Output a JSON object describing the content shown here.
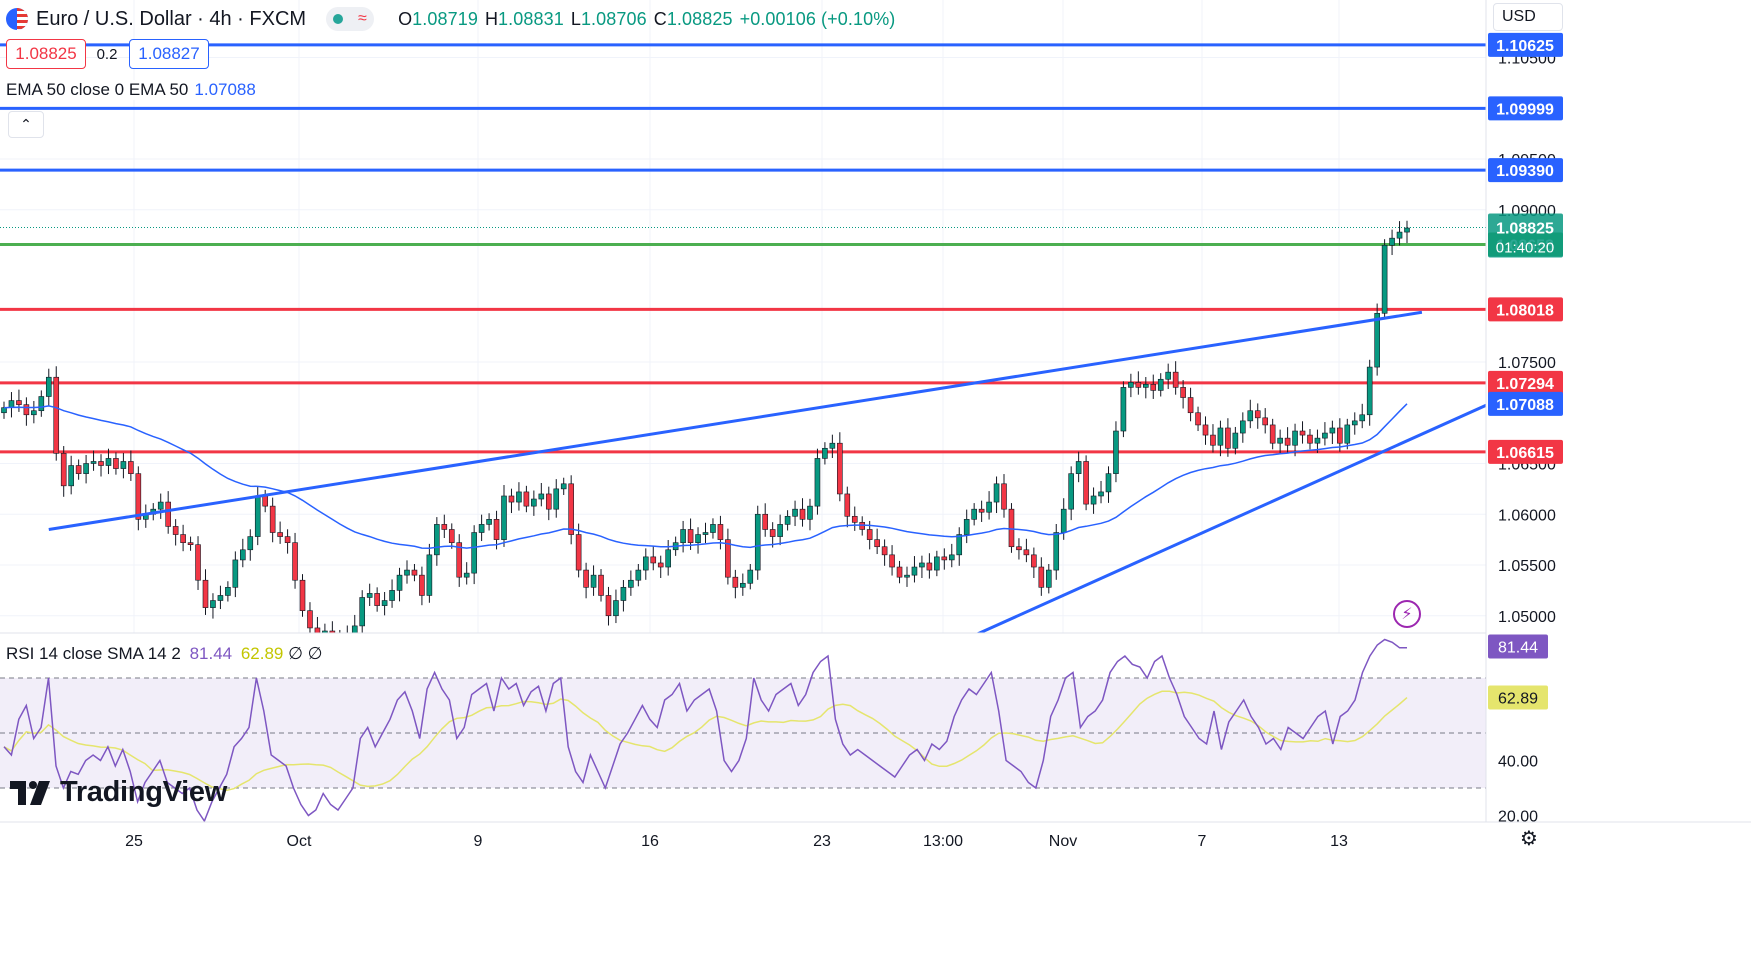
{
  "header": {
    "symbol_title": "Euro / U.S. Dollar · 4h · FXCM",
    "ohlc": [
      {
        "k": "O",
        "v": "1.08719"
      },
      {
        "k": "H",
        "v": "1.08831"
      },
      {
        "k": "L",
        "v": "1.08706"
      },
      {
        "k": "C",
        "v": "1.08825"
      },
      {
        "k": "",
        "v": "+0.00106 (+0.10%)"
      }
    ]
  },
  "quote": {
    "bid": "1.08825",
    "spread": "0.2",
    "ask": "1.08827"
  },
  "ema_legend": {
    "label": "EMA 50 close 0 EMA 50",
    "value": "1.07088"
  },
  "rsi_legend": {
    "label": "RSI 14 close SMA 14 2",
    "rsi": "81.44",
    "sma": "62.89",
    "extra": "∅ ∅"
  },
  "currency": "USD",
  "brand": "TradingView",
  "colors": {
    "up": "#089981",
    "down": "#f23645",
    "blue": "#2962ff",
    "green": "#4caf50",
    "red": "#f23645",
    "ema": "#2962ff",
    "rsi": "#7e57c2",
    "rsi_sma": "#e5e56d"
  },
  "chart_data": [
    {
      "type": "candlestick",
      "title": "Euro / U.S. Dollar · 4h · FXCM",
      "x_ticks": [
        "25",
        "Oct",
        "9",
        "16",
        "23",
        "13:00",
        "Nov",
        "7",
        "13"
      ],
      "y_ticks": [
        "1.10500",
        "1.09500",
        "1.09000",
        "1.07500",
        "1.06500",
        "1.06000",
        "1.05500",
        "1.05000"
      ],
      "ylim": [
        1.0474,
        1.1074
      ],
      "horizontal_levels": [
        {
          "value": 1.10625,
          "label": "1.10625",
          "color": "blue"
        },
        {
          "value": 1.09999,
          "label": "1.09999",
          "color": "blue"
        },
        {
          "value": 1.0939,
          "label": "1.09390",
          "color": "blue"
        },
        {
          "value": 1.08658,
          "label": "1.08658",
          "color": "green"
        },
        {
          "value": 1.08018,
          "label": "1.08018",
          "color": "red"
        },
        {
          "value": 1.07294,
          "label": "1.07294",
          "color": "red"
        },
        {
          "value": 1.06615,
          "label": "1.06615",
          "color": "red"
        }
      ],
      "last_price": {
        "value": 1.08825,
        "label": "1.08825",
        "countdown": "01:40:20"
      },
      "ema50_label": "1.07088",
      "trendlines": [
        {
          "from": {
            "bar": 6,
            "price": 1.0585
          },
          "to": {
            "bar": 190,
            "price": 1.0799
          }
        },
        {
          "from": {
            "bar": 128,
            "price": 1.0474
          },
          "to": {
            "bar": 200,
            "price": 1.0712
          }
        }
      ],
      "candles_close": [
        1.0705,
        1.0712,
        1.0708,
        1.0698,
        1.0702,
        1.0716,
        1.0735,
        1.066,
        1.0628,
        1.0648,
        1.064,
        1.065,
        1.0652,
        1.0648,
        1.0655,
        1.0645,
        1.0652,
        1.064,
        1.0595,
        1.06,
        1.0605,
        1.0612,
        1.0588,
        1.058,
        1.0572,
        1.057,
        1.0535,
        1.0508,
        1.0515,
        1.052,
        1.0528,
        1.0555,
        1.0565,
        1.0578,
        1.0618,
        1.0608,
        1.0582,
        1.0578,
        1.0572,
        1.0535,
        1.0505,
        1.0488,
        1.0482,
        1.0485,
        1.048,
        1.0478,
        1.0482,
        1.049,
        1.0518,
        1.0522,
        1.051,
        1.0515,
        1.0525,
        1.054,
        1.0545,
        1.054,
        1.052,
        1.056,
        1.059,
        1.0585,
        1.0572,
        1.0538,
        1.0542,
        1.0582,
        1.059,
        1.0595,
        1.0575,
        1.0618,
        1.0612,
        1.0622,
        1.0608,
        1.0615,
        1.062,
        1.0605,
        1.0625,
        1.063,
        1.058,
        1.0545,
        1.0528,
        1.054,
        1.052,
        1.05,
        1.0515,
        1.0528,
        1.0535,
        1.0545,
        1.0558,
        1.0552,
        1.0548,
        1.0565,
        1.0572,
        1.0585,
        1.0572,
        1.058,
        1.0582,
        1.059,
        1.0575,
        1.0538,
        1.0528,
        1.0532,
        1.0545,
        1.06,
        1.0585,
        1.0578,
        1.059,
        1.0598,
        1.0605,
        1.0595,
        1.0608,
        1.0655,
        1.0665,
        1.067,
        1.062,
        1.0598,
        1.0592,
        1.0585,
        1.0575,
        1.0568,
        1.056,
        1.0548,
        1.0538,
        1.054,
        1.0548,
        1.0552,
        1.0545,
        1.0558,
        1.0555,
        1.056,
        1.058,
        1.0595,
        1.0605,
        1.0602,
        1.0612,
        1.063,
        1.0605,
        1.0568,
        1.0565,
        1.056,
        1.0548,
        1.0528,
        1.0545,
        1.0582,
        1.0605,
        1.064,
        1.0652,
        1.061,
        1.0618,
        1.0622,
        1.064,
        1.0682,
        1.0725,
        1.073,
        1.0725,
        1.0728,
        1.0722,
        1.0733,
        1.074,
        1.0725,
        1.0715,
        1.07,
        1.0688,
        1.0678,
        1.0668,
        1.0685,
        1.0665,
        1.068,
        1.0692,
        1.0702,
        1.0695,
        1.0688,
        1.067,
        1.0675,
        1.0668,
        1.0682,
        1.0678,
        1.067,
        1.0675,
        1.068,
        1.0685,
        1.067,
        1.0688,
        1.0692,
        1.0698,
        1.0745,
        1.0798,
        1.0865,
        1.0872,
        1.0878,
        1.0882
      ],
      "ema50_value": 1.07088
    },
    {
      "type": "line",
      "title": "RSI 14 close SMA 14 2",
      "y_ticks": [
        "40.00",
        "20.00"
      ],
      "levels": [
        70,
        50,
        30
      ],
      "last_rsi": 81.44,
      "last_sma": 62.89,
      "rsi": [
        45,
        42,
        55,
        60,
        48,
        52,
        70,
        38,
        30,
        36,
        35,
        40,
        42,
        40,
        45,
        38,
        44,
        36,
        25,
        32,
        36,
        40,
        32,
        30,
        28,
        30,
        22,
        18,
        25,
        30,
        35,
        45,
        48,
        52,
        70,
        58,
        42,
        40,
        38,
        30,
        24,
        20,
        22,
        28,
        24,
        22,
        26,
        30,
        48,
        52,
        45,
        50,
        55,
        62,
        65,
        58,
        48,
        66,
        72,
        66,
        62,
        48,
        52,
        64,
        66,
        68,
        58,
        70,
        66,
        68,
        60,
        65,
        67,
        58,
        68,
        70,
        45,
        36,
        32,
        42,
        36,
        30,
        38,
        46,
        50,
        55,
        60,
        55,
        52,
        62,
        64,
        68,
        58,
        62,
        64,
        66,
        58,
        40,
        36,
        40,
        48,
        70,
        62,
        58,
        64,
        66,
        68,
        60,
        64,
        72,
        76,
        78,
        55,
        46,
        42,
        44,
        42,
        40,
        38,
        36,
        34,
        38,
        42,
        44,
        40,
        46,
        44,
        47,
        56,
        62,
        66,
        64,
        68,
        72,
        58,
        40,
        38,
        36,
        32,
        30,
        40,
        56,
        62,
        70,
        72,
        52,
        56,
        58,
        62,
        72,
        76,
        78,
        75,
        74,
        70,
        76,
        78,
        70,
        64,
        56,
        52,
        48,
        46,
        58,
        44,
        54,
        58,
        62,
        56,
        52,
        46,
        48,
        44,
        52,
        50,
        48,
        52,
        56,
        58,
        46,
        56,
        58,
        62,
        72,
        78,
        82,
        84,
        83,
        81,
        81
      ]
    }
  ]
}
